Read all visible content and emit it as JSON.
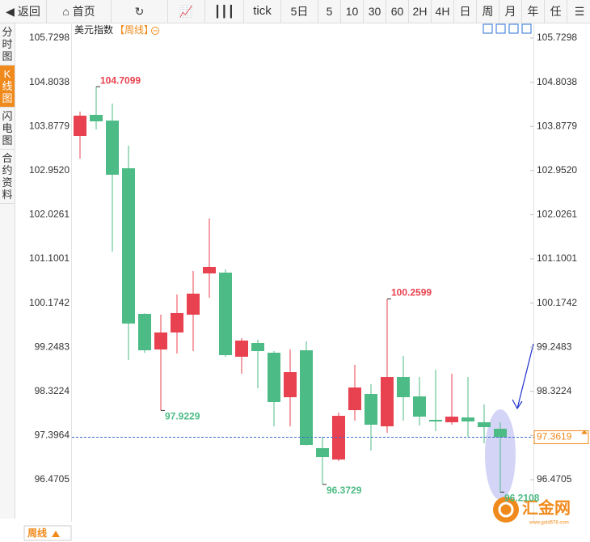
{
  "toolbar": {
    "back": "返回",
    "home": "首页",
    "tick": "tick",
    "periods": [
      "5日",
      "5",
      "10",
      "30",
      "60",
      "2H",
      "4H",
      "日",
      "周",
      "月",
      "年",
      "任"
    ]
  },
  "sidebar": [
    "分时图",
    "K线图",
    "闪电图",
    "合约资料"
  ],
  "chart_data": {
    "type": "candlestick",
    "title": "美元指数",
    "subtitle": "【周线】",
    "open": [
      103.678,
      104.119,
      103.999,
      102.999,
      99.947,
      99.201,
      99.557,
      99.93,
      100.795,
      100.812,
      99.048,
      99.337,
      99.133,
      98.2,
      99.184,
      97.132,
      96.894,
      97.929,
      98.268,
      97.59,
      98.624,
      98.217,
      97.726,
      97.675,
      97.776,
      97.675,
      97.539
    ],
    "high": [
      104.187,
      104.7099,
      104.356,
      103.474,
      99.96,
      99.93,
      100.354,
      100.846,
      101.948,
      100.88,
      99.438,
      99.405,
      99.167,
      99.201,
      99.371,
      97.369,
      97.878,
      98.878,
      98.472,
      100.2599,
      99.065,
      98.624,
      98.777,
      98.692,
      98.624,
      98.048,
      97.675
    ],
    "low": [
      103.203,
      103.814,
      101.253,
      98.98,
      99.13,
      97.9229,
      99.116,
      99.167,
      100.286,
      99.048,
      98.692,
      98.387,
      97.59,
      97.59,
      97.19,
      96.3729,
      96.86,
      97.709,
      97.081,
      97.454,
      97.709,
      97.607,
      97.488,
      97.624,
      97.369,
      97.234,
      96.2108
    ],
    "close": [
      104.102,
      103.983,
      102.864,
      99.744,
      99.184,
      99.557,
      99.964,
      100.371,
      100.931,
      99.082,
      99.387,
      99.167,
      98.099,
      98.726,
      97.2,
      96.945,
      97.81,
      98.404,
      97.624,
      98.624,
      98.2,
      97.793,
      97.692,
      97.793,
      97.692,
      97.573,
      97.3619
    ],
    "up_color": "#e8414f",
    "down_color": "#4cbb85",
    "ylim": [
      95.589,
      106.018
    ],
    "yticks": [
      105.7298,
      104.8038,
      103.8779,
      {
        "value": 102.952,
        "label": "102.9520"
      },
      102.0261,
      101.1001,
      100.1742,
      99.2483,
      98.3224,
      97.3964,
      96.4705
    ],
    "last_price": 97.3619,
    "annotations": [
      104.7099,
      97.9229,
      100.2599,
      96.3729,
      96.2108
    ]
  },
  "footer": {
    "period": "周线"
  },
  "logo": {
    "name": "汇金网",
    "url": "www.gold678.com"
  }
}
